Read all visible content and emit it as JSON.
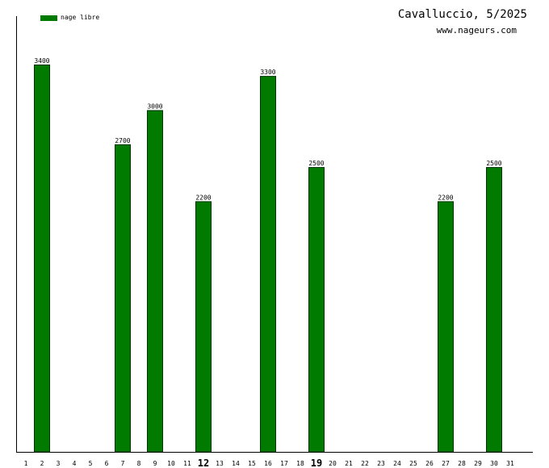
{
  "colors": {
    "bar": "#007b00",
    "bar_border": "#003000",
    "axis": "#000000"
  },
  "legend": {
    "label": "nage libre"
  },
  "title": "Cavalluccio, 5/2025",
  "subtitle": "www.nageurs.com",
  "chart_data": {
    "type": "bar",
    "title": "Cavalluccio, 5/2025",
    "xlabel": "",
    "ylabel": "",
    "ylim": [
      0,
      3800
    ],
    "grid": false,
    "legend_position": "top-left",
    "highlighted_days": [
      12,
      19
    ],
    "categories": [
      "1",
      "2",
      "3",
      "4",
      "5",
      "6",
      "7",
      "8",
      "9",
      "10",
      "11",
      "12",
      "13",
      "14",
      "15",
      "16",
      "17",
      "18",
      "19",
      "20",
      "21",
      "22",
      "23",
      "24",
      "25",
      "26",
      "27",
      "28",
      "29",
      "30",
      "31"
    ],
    "series": [
      {
        "name": "nage libre",
        "values": [
          0,
          3400,
          0,
          0,
          0,
          0,
          2700,
          0,
          3000,
          0,
          0,
          2200,
          0,
          0,
          0,
          3300,
          0,
          0,
          2500,
          0,
          0,
          0,
          0,
          0,
          0,
          0,
          2200,
          0,
          0,
          2500,
          0
        ]
      }
    ]
  }
}
